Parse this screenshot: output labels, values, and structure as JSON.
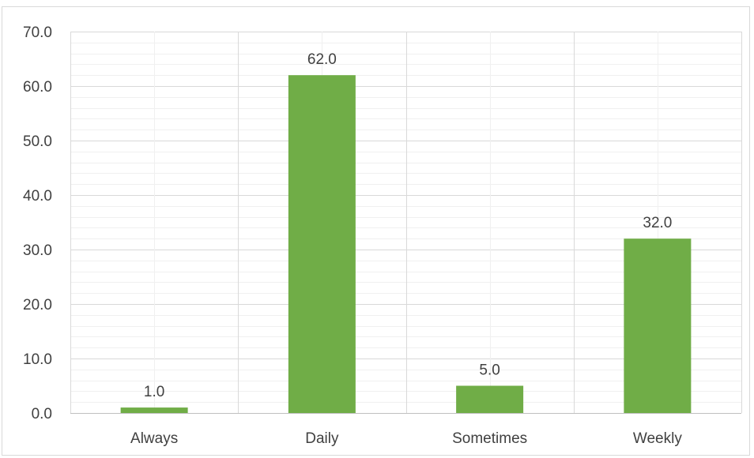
{
  "chart_data": {
    "type": "bar",
    "categories": [
      "Always",
      "Daily",
      "Sometimes",
      "Weekly"
    ],
    "values": [
      1.0,
      62.0,
      5.0,
      32.0
    ],
    "data_labels": [
      "1.0",
      "62.0",
      "5.0",
      "32.0"
    ],
    "y_ticks": [
      "0.0",
      "10.0",
      "20.0",
      "30.0",
      "40.0",
      "50.0",
      "60.0",
      "70.0"
    ],
    "ylim": [
      0,
      70
    ],
    "y_major_step": 10,
    "y_minor_step": 2,
    "grid": true,
    "legend": "none",
    "bar_color": "#70ad47",
    "title": "",
    "xlabel": "",
    "ylabel": ""
  }
}
